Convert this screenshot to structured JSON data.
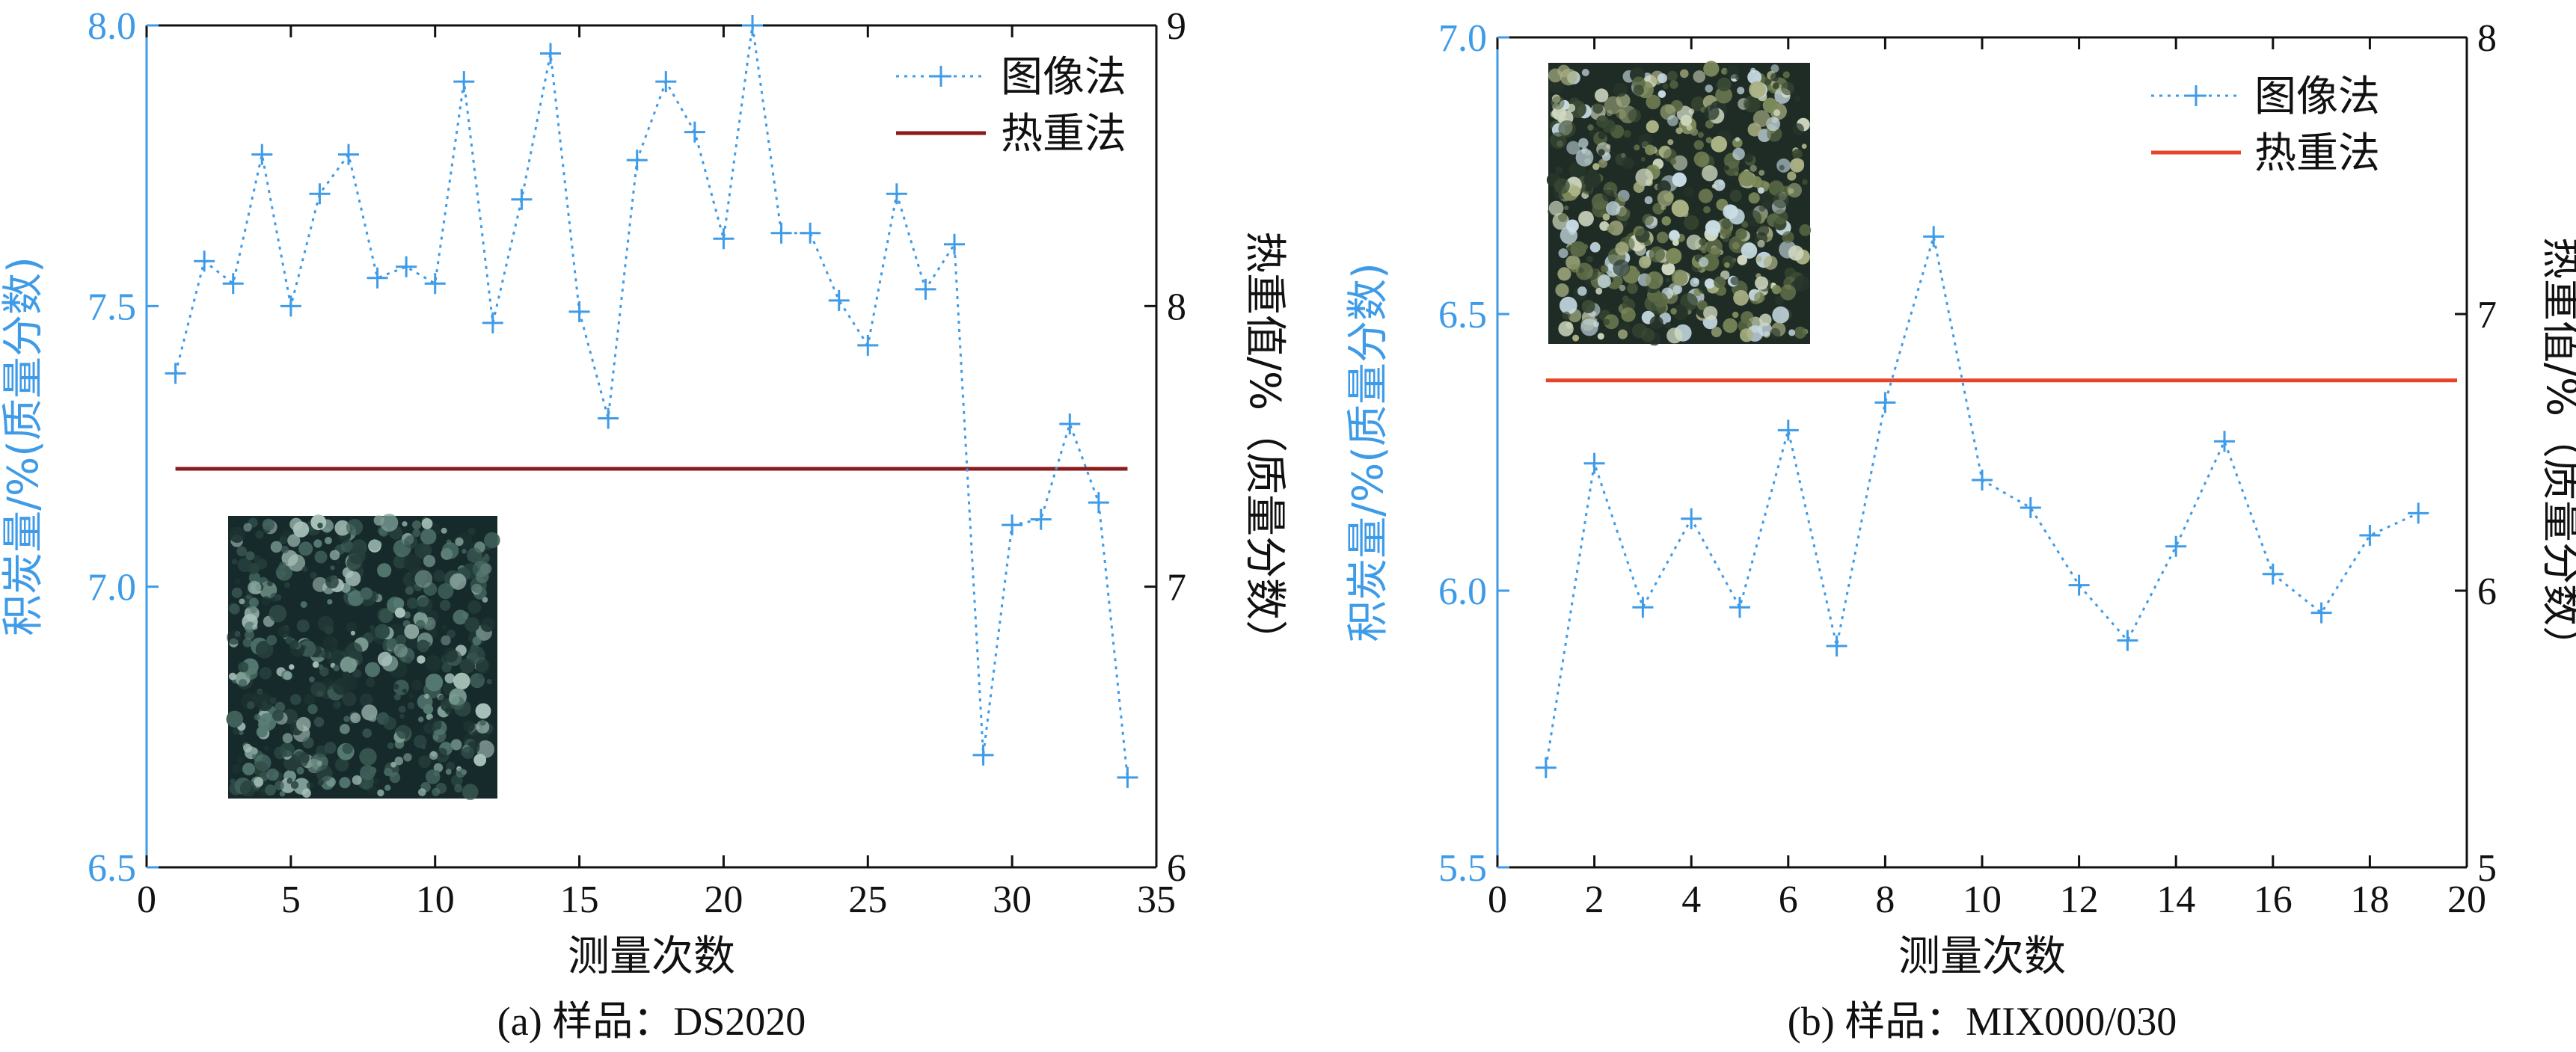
{
  "chart_data": [
    {
      "type": "line",
      "caption": "(a) 样品：DS2020",
      "xlabel": "测量次数",
      "ylabel_left": "积炭量/%(质量分数)",
      "ylabel_right": "热重值/%（质量分数）",
      "xlim": [
        0,
        35
      ],
      "ylim_left": [
        6.5,
        8.0
      ],
      "ylim_right": [
        6,
        9
      ],
      "x_ticks": [
        "0",
        "5",
        "10",
        "15",
        "20",
        "25",
        "30",
        "35"
      ],
      "y_left_ticks": [
        "6.5",
        "7.0",
        "7.5",
        "8.0"
      ],
      "y_right_ticks": [
        "6",
        "7",
        "8",
        "9"
      ],
      "series": [
        {
          "name": "图像法",
          "axis": "left",
          "color": "#3e9be8",
          "x": [
            1,
            2,
            3,
            4,
            5,
            6,
            7,
            8,
            9,
            10,
            11,
            12,
            13,
            14,
            15,
            16,
            17,
            18,
            19,
            20,
            21,
            22,
            23,
            24,
            25,
            26,
            27,
            28,
            29,
            30,
            31,
            32,
            33,
            34
          ],
          "values": [
            7.38,
            7.58,
            7.54,
            7.77,
            7.5,
            7.7,
            7.77,
            7.55,
            7.57,
            7.54,
            7.9,
            7.47,
            7.69,
            7.95,
            7.49,
            7.3,
            7.76,
            7.9,
            7.81,
            7.62,
            8.0,
            7.63,
            7.63,
            7.51,
            7.43,
            7.7,
            7.53,
            7.61,
            6.7,
            7.11,
            7.12,
            7.29,
            7.15,
            6.66
          ]
        },
        {
          "name": "热重法",
          "axis": "right",
          "color": "#8b1a1a",
          "constant": 7.42
        }
      ],
      "legend": [
        "图像法",
        "热重法"
      ]
    },
    {
      "type": "line",
      "caption": "(b) 样品：MIX000/030",
      "xlabel": "测量次数",
      "ylabel_left": "积炭量/%(质量分数)",
      "ylabel_right": "热重值/%（质量分数）",
      "xlim": [
        0,
        20
      ],
      "ylim_left": [
        5.5,
        7.0
      ],
      "ylim_right": [
        5,
        8
      ],
      "x_ticks": [
        "0",
        "2",
        "4",
        "6",
        "8",
        "10",
        "12",
        "14",
        "16",
        "18",
        "20"
      ],
      "y_left_ticks": [
        "5.5",
        "6.0",
        "6.5",
        "7.0"
      ],
      "y_right_ticks": [
        "5",
        "6",
        "7",
        "8"
      ],
      "series": [
        {
          "name": "图像法",
          "axis": "left",
          "color": "#3e9be8",
          "x": [
            1,
            2,
            3,
            4,
            5,
            6,
            7,
            8,
            9,
            10,
            11,
            12,
            13,
            14,
            15,
            16,
            17,
            18,
            19
          ],
          "values": [
            5.68,
            6.23,
            5.97,
            6.13,
            5.97,
            6.29,
            5.9,
            6.34,
            6.64,
            6.2,
            6.15,
            6.01,
            5.91,
            6.08,
            6.27,
            6.03,
            5.96,
            6.1,
            6.14
          ]
        },
        {
          "name": "热重法",
          "axis": "right",
          "color": "#e8442a",
          "constant": 6.76
        }
      ],
      "legend": [
        "图像法",
        "热重法"
      ]
    }
  ],
  "colors": {
    "image_method": "#3e9be8",
    "tg_a": "#8b1a1a",
    "tg_b": "#e8442a",
    "axis_left": "#3e9be8",
    "axis_right": "#111111"
  }
}
